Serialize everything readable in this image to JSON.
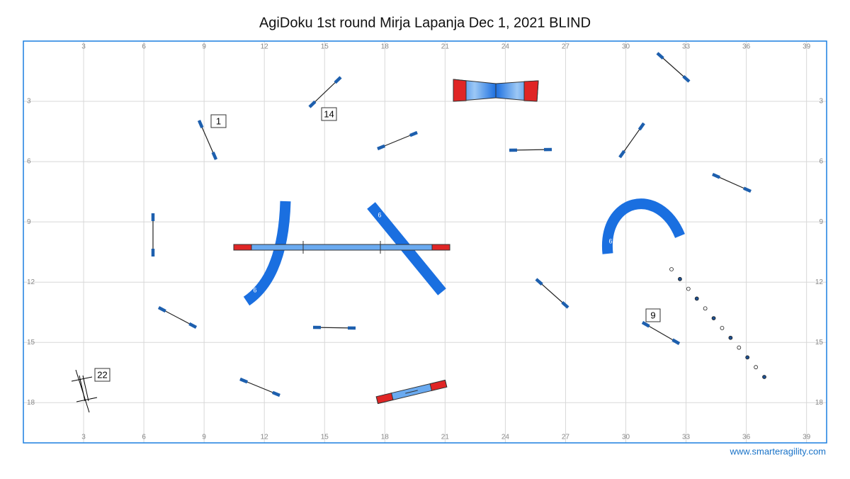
{
  "title": "AgiDoku 1st round Mirja Lapanja Dec 1, 2021 BLIND",
  "axis": {
    "x": [
      3,
      6,
      9,
      12,
      15,
      18,
      21,
      24,
      27,
      30,
      33,
      36,
      39
    ],
    "y": [
      3,
      6,
      9,
      12,
      15,
      18
    ]
  },
  "numbers": [
    "1",
    "14",
    "9",
    "22"
  ],
  "tunnels": [
    "6",
    "6",
    "6"
  ],
  "footer": "www.smarteragility.com"
}
